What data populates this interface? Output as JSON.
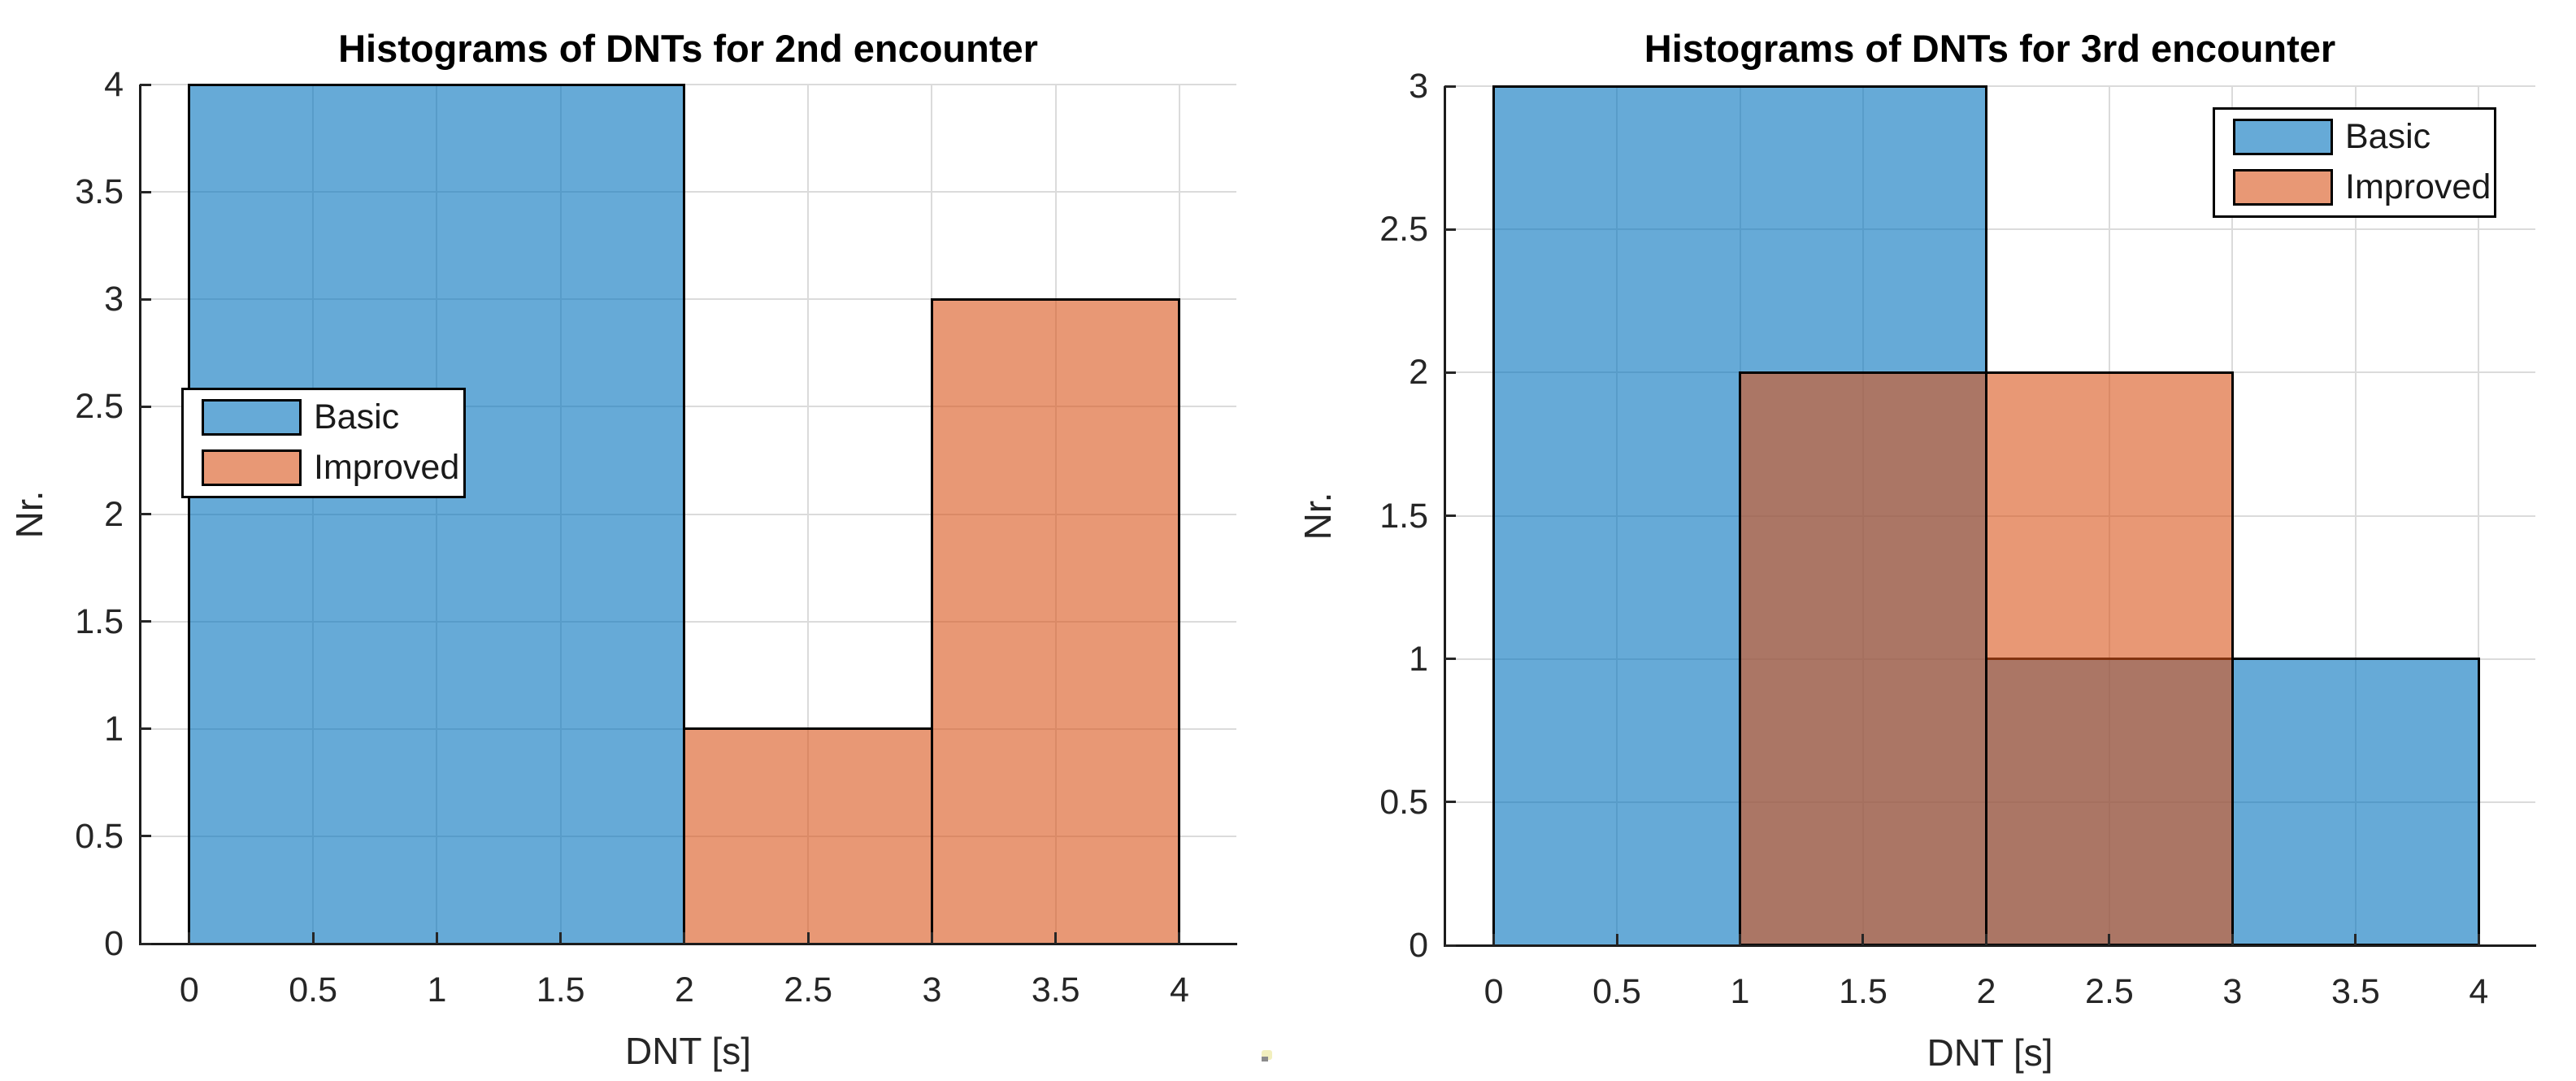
{
  "figure": {
    "background": "#FFFFFF",
    "axis_color": "#262626",
    "gridline_color": "#DBDBDB",
    "bar_edge_color": "#000000"
  },
  "colors": {
    "basic": "#0072BD",
    "improved": "#D95319",
    "basic_rendered_fill": "#66AAD7",
    "improved_rendered_fill": "#E8976F",
    "overlap_rendered_fill": "#AB7665"
  },
  "chart_data": [
    {
      "type": "bar",
      "subtype": "overlaid-histogram",
      "title": "Histograms of DNTs for 2nd encounter",
      "xlabel": "DNT [s]",
      "ylabel": "Nr.",
      "xlim": [
        -0.2,
        4.23
      ],
      "ylim": [
        0,
        4
      ],
      "xticks": [
        0,
        0.5,
        1,
        1.5,
        2,
        2.5,
        3,
        3.5,
        4
      ],
      "yticks": [
        0,
        0.5,
        1,
        1.5,
        2,
        2.5,
        3,
        3.5,
        4
      ],
      "grid": true,
      "legend": {
        "location": "middle-left",
        "items": [
          "Basic",
          "Improved"
        ]
      },
      "series": [
        {
          "name": "Basic",
          "face_color": "#0072BD",
          "face_alpha": 0.6,
          "edge_color": "#000000",
          "bins": [
            {
              "from": 0,
              "to": 2,
              "count": 4
            }
          ]
        },
        {
          "name": "Improved",
          "face_color": "#D95319",
          "face_alpha": 0.6,
          "edge_color": "#000000",
          "bins": [
            {
              "from": 2,
              "to": 3,
              "count": 1
            },
            {
              "from": 3,
              "to": 4,
              "count": 3
            }
          ]
        }
      ]
    },
    {
      "type": "bar",
      "subtype": "overlaid-histogram",
      "title": "Histograms of DNTs for 3rd encounter",
      "xlabel": "DNT [s]",
      "ylabel": "Nr.",
      "xlim": [
        -0.2,
        4.23
      ],
      "ylim": [
        0,
        3
      ],
      "xticks": [
        0,
        0.5,
        1,
        1.5,
        2,
        2.5,
        3,
        3.5,
        4
      ],
      "yticks": [
        0,
        0.5,
        1,
        1.5,
        2,
        2.5,
        3
      ],
      "grid": true,
      "legend": {
        "location": "top-right",
        "items": [
          "Basic",
          "Improved"
        ]
      },
      "series": [
        {
          "name": "Basic",
          "face_color": "#0072BD",
          "face_alpha": 0.6,
          "edge_color": "#000000",
          "bins": [
            {
              "from": 0,
              "to": 2,
              "count": 3
            },
            {
              "from": 2,
              "to": 3,
              "count": 1
            },
            {
              "from": 3,
              "to": 4,
              "count": 1
            }
          ]
        },
        {
          "name": "Improved",
          "face_color": "#D95319",
          "face_alpha": 0.6,
          "edge_color": "#000000",
          "bins": [
            {
              "from": 1,
              "to": 2,
              "count": 2
            },
            {
              "from": 2,
              "to": 3,
              "count": 2
            }
          ]
        }
      ]
    }
  ],
  "artifacts": {
    "cursor_speck_color": "#F2EFBE",
    "cursor_speck_shadow_color": "#8C8C8C"
  }
}
